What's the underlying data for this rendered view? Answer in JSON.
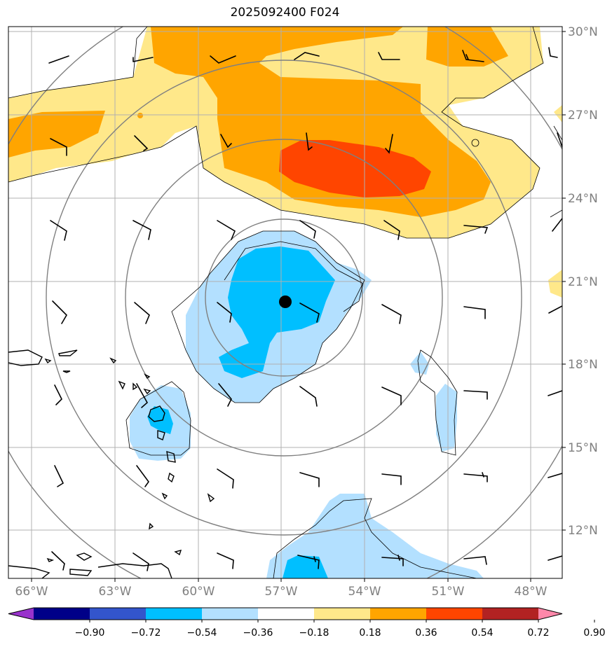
{
  "title": "2025092400 F024",
  "lat_labels": [
    "30°N",
    "27°N",
    "24°N",
    "21°N",
    "18°N",
    "15°N",
    "12°N"
  ],
  "lon_labels": [
    "66°W",
    "63°W",
    "60°W",
    "57°W",
    "54°W",
    "51°W",
    "48°W"
  ],
  "colorbar": {
    "labels": [
      "−0.90",
      "−0.72",
      "−0.54",
      "−0.36",
      "−0.18",
      "0.18",
      "0.36",
      "0.54",
      "0.72",
      "0.90"
    ],
    "colors": [
      "#9933cc",
      "#000088",
      "#3355cc",
      "#00bfff",
      "#b3e0ff",
      "#ffffff",
      "#ffe88a",
      "#ffa500",
      "#ff4500",
      "#b22222",
      "#ff88aa"
    ]
  },
  "storm_center": {
    "lon": -57.0,
    "lat": 20.2
  }
}
